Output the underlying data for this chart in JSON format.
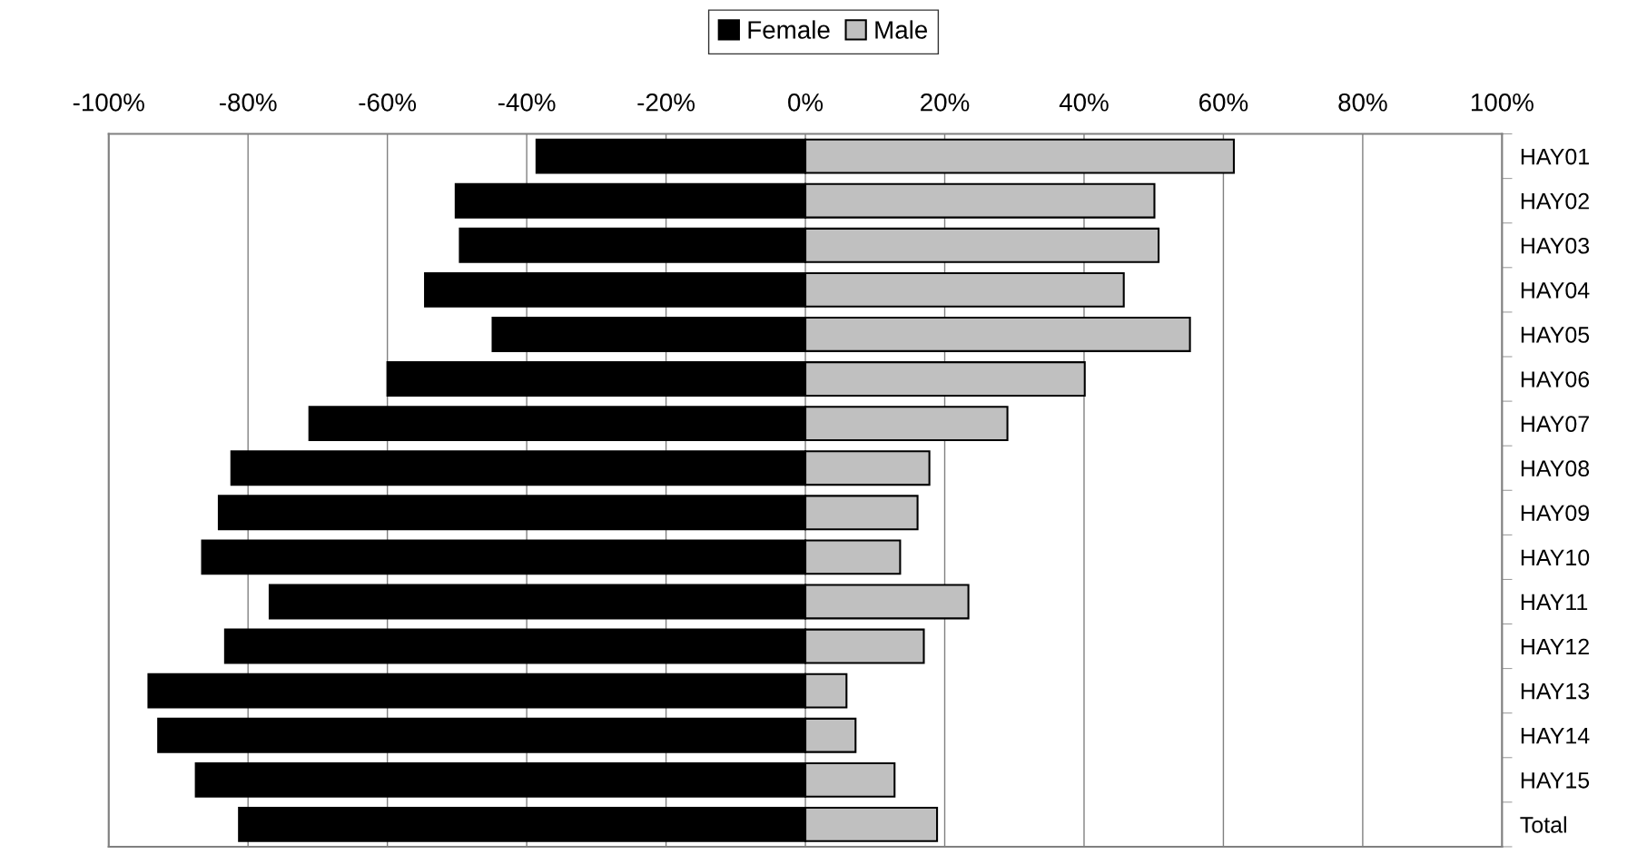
{
  "chart_data": {
    "type": "bar",
    "orientation": "horizontal",
    "stacked": true,
    "categories": [
      "HAY01",
      "HAY02",
      "HAY03",
      "HAY04",
      "HAY05",
      "HAY06",
      "HAY07",
      "HAY08",
      "HAY09",
      "HAY10",
      "HAY11",
      "HAY12",
      "HAY13",
      "HAY14",
      "HAY15",
      "Total"
    ],
    "series": [
      {
        "name": "Female",
        "color": "#000000",
        "values": [
          -38.6,
          -50.2,
          -49.6,
          -54.6,
          -44.9,
          -60.0,
          -71.2,
          -82.4,
          -84.2,
          -86.6,
          -76.9,
          -83.3,
          -94.3,
          -92.9,
          -87.5,
          -81.3
        ]
      },
      {
        "name": "Male",
        "color": "#c0c0c0",
        "values": [
          61.5,
          50.1,
          50.7,
          45.7,
          55.2,
          40.1,
          29.0,
          17.8,
          16.1,
          13.6,
          23.4,
          17.0,
          5.9,
          7.2,
          12.8,
          18.9
        ]
      }
    ],
    "xlim": [
      -100,
      100
    ],
    "xticks": [
      {
        "value": -100,
        "label": "-100%"
      },
      {
        "value": -80,
        "label": "-80%"
      },
      {
        "value": -60,
        "label": "-60%"
      },
      {
        "value": -40,
        "label": "-40%"
      },
      {
        "value": -20,
        "label": "-20%"
      },
      {
        "value": 0,
        "label": "0%"
      },
      {
        "value": 20,
        "label": "20%"
      },
      {
        "value": 40,
        "label": "40%"
      },
      {
        "value": 60,
        "label": "60%"
      },
      {
        "value": 80,
        "label": "80%"
      },
      {
        "value": 100,
        "label": "100%"
      }
    ],
    "grid": "x",
    "legend": "top"
  }
}
